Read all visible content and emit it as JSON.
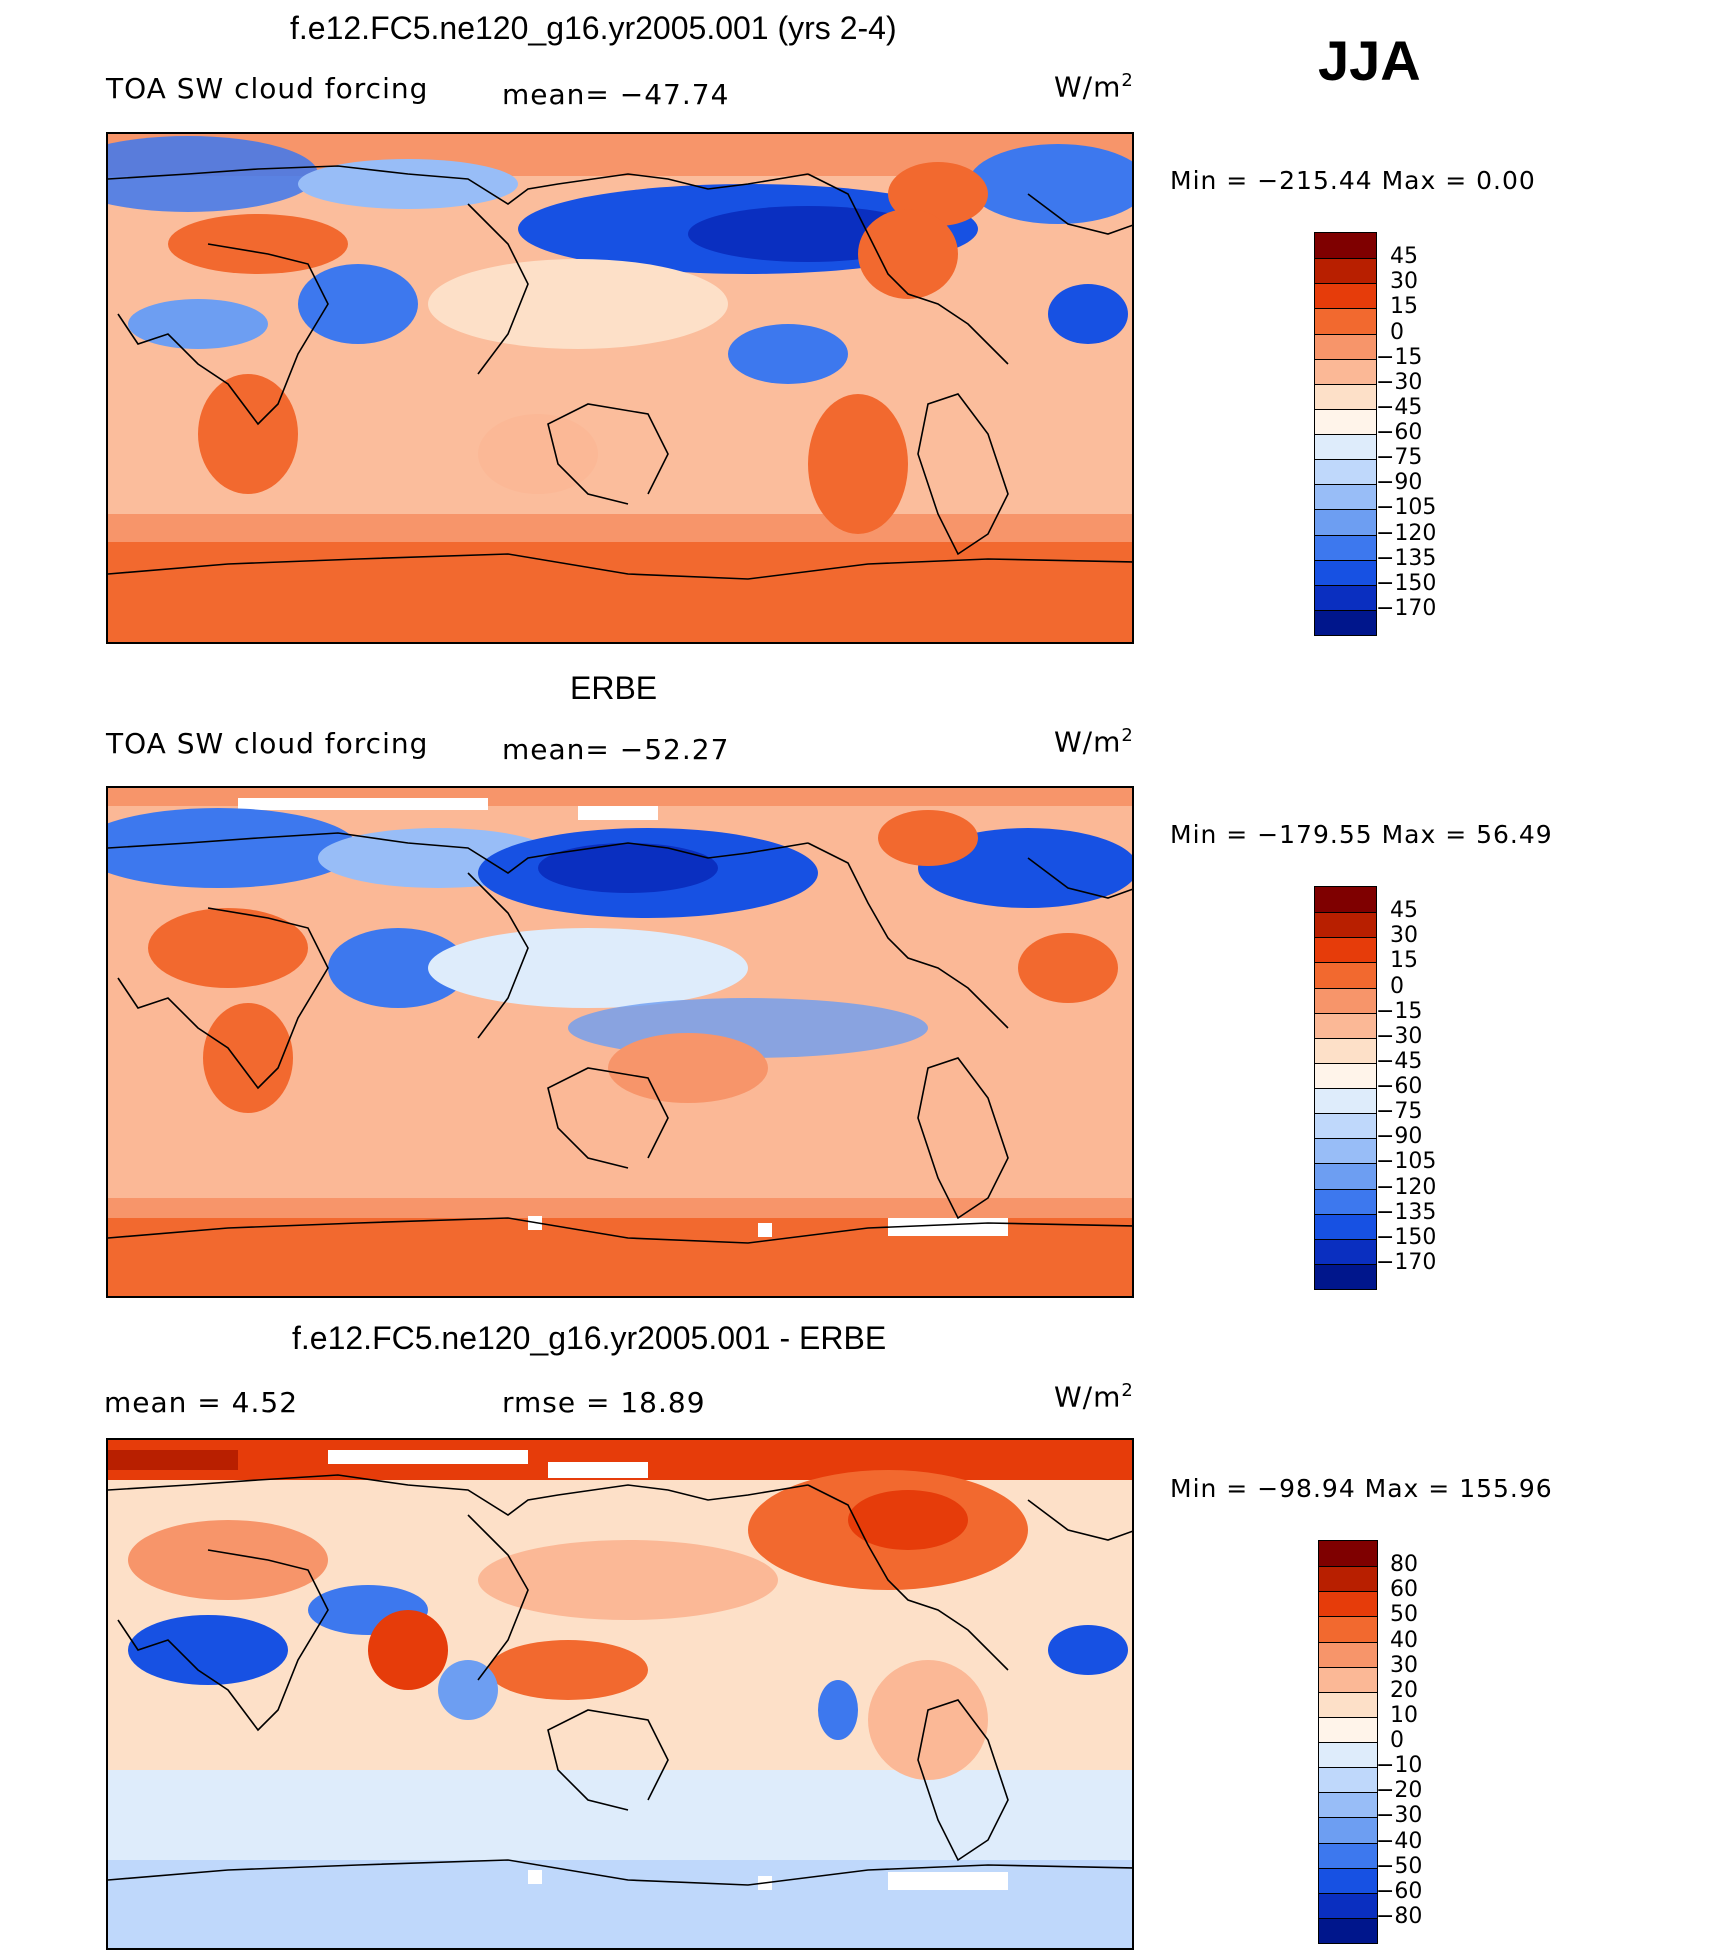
{
  "season": "JJA",
  "panels": [
    {
      "title": "f.e12.FC5.ne120_g16.yr2005.001 (yrs 2-4)",
      "left_label": "TOA SW cloud forcing",
      "mid_label": "mean= −47.74",
      "units": "W/m",
      "units_exp": "2",
      "minmax": "Min  =  −215.44  Max  =     0.00",
      "colorbar_labels": [
        "45",
        "30",
        "15",
        "0",
        "−15",
        "−30",
        "−45",
        "−60",
        "−75",
        "−90",
        "−105",
        "−120",
        "−135",
        "−150",
        "−170"
      ]
    },
    {
      "title": "ERBE",
      "left_label": "TOA SW cloud forcing",
      "mid_label": "mean= −52.27",
      "units": "W/m",
      "units_exp": "2",
      "minmax": "Min  =  −179.55  Max  =   56.49",
      "colorbar_labels": [
        "45",
        "30",
        "15",
        "0",
        "−15",
        "−30",
        "−45",
        "−60",
        "−75",
        "−90",
        "−105",
        "−120",
        "−135",
        "−150",
        "−170"
      ]
    },
    {
      "title": "f.e12.FC5.ne120_g16.yr2005.001 - ERBE",
      "left_label": "mean  =     4.52",
      "mid_label": "rmse  =    18.89",
      "units": "W/m",
      "units_exp": "2",
      "minmax": "Min  =  −98.94  Max  =  155.96",
      "colorbar_labels": [
        "80",
        "60",
        "50",
        "40",
        "30",
        "20",
        "10",
        "0",
        "−10",
        "−20",
        "−30",
        "−40",
        "−50",
        "−60",
        "−80"
      ]
    }
  ],
  "colors": {
    "scale": [
      "#7f0000",
      "#b81f00",
      "#e63c0a",
      "#f2692f",
      "#f7956a",
      "#fbb896",
      "#fde0c8",
      "#fff4ea",
      "#deecfb",
      "#bfd8fb",
      "#98bdf7",
      "#6d9ef2",
      "#3d78ee",
      "#1751e3",
      "#0a2fc0",
      "#00168c"
    ],
    "map_background": "#fbbd9c",
    "coast": "#000000"
  }
}
